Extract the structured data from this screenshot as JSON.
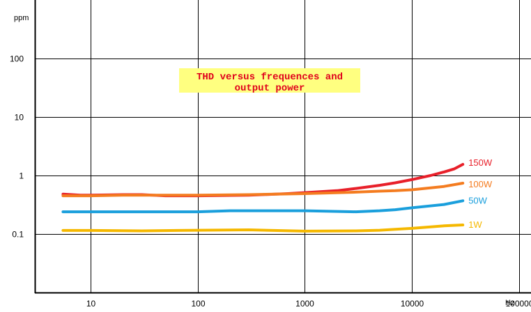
{
  "chart_data": {
    "type": "line",
    "title_lines": [
      "THD versus frequences and",
      "output power"
    ],
    "xlabel": "Hz",
    "ylabel": "ppm",
    "x_scale": "log",
    "y_scale": "log",
    "xlim": [
      3,
      130000
    ],
    "ylim": [
      0.01,
      1000
    ],
    "x_ticks": [
      {
        "value": 10,
        "label": "10"
      },
      {
        "value": 100,
        "label": "100"
      },
      {
        "value": 1000,
        "label": "1000"
      },
      {
        "value": 10000,
        "label": "10000"
      },
      {
        "value": 100000,
        "label": "100000"
      }
    ],
    "y_ticks": [
      {
        "value": 0.1,
        "label": "0.1"
      },
      {
        "value": 1,
        "label": "1"
      },
      {
        "value": 10,
        "label": "10"
      },
      {
        "value": 100,
        "label": "100"
      }
    ],
    "grid": true,
    "colors": {
      "title_text": "#e0001c",
      "title_background": "#ffff80",
      "axis": "#000000"
    },
    "series": [
      {
        "name": "150W",
        "color": "#e8202a",
        "x": [
          5.5,
          8,
          10,
          20,
          30,
          50,
          100,
          300,
          700,
          1000,
          2000,
          3000,
          5000,
          7000,
          10000,
          15000,
          20000,
          25000,
          30000
        ],
        "y": [
          0.48,
          0.46,
          0.46,
          0.47,
          0.47,
          0.45,
          0.45,
          0.46,
          0.49,
          0.51,
          0.55,
          0.6,
          0.68,
          0.75,
          0.85,
          1.0,
          1.15,
          1.3,
          1.55
        ]
      },
      {
        "name": "100W",
        "color": "#f47c20",
        "x": [
          5.5,
          10,
          20,
          50,
          100,
          300,
          1000,
          3000,
          5000,
          7000,
          10000,
          20000,
          30000
        ],
        "y": [
          0.45,
          0.45,
          0.46,
          0.46,
          0.46,
          0.47,
          0.49,
          0.52,
          0.54,
          0.55,
          0.57,
          0.65,
          0.74
        ]
      },
      {
        "name": "50W",
        "color": "#1a9fdc",
        "x": [
          5.5,
          10,
          50,
          100,
          200,
          500,
          1000,
          3000,
          5000,
          7000,
          10000,
          20000,
          30000
        ],
        "y": [
          0.24,
          0.24,
          0.24,
          0.24,
          0.25,
          0.25,
          0.25,
          0.24,
          0.25,
          0.26,
          0.28,
          0.32,
          0.37
        ]
      },
      {
        "name": "1W",
        "color": "#f5b800",
        "x": [
          5.5,
          10,
          30,
          100,
          300,
          1000,
          3000,
          5000,
          7000,
          10000,
          20000,
          30000
        ],
        "y": [
          0.115,
          0.115,
          0.113,
          0.116,
          0.118,
          0.112,
          0.113,
          0.116,
          0.12,
          0.125,
          0.138,
          0.143
        ]
      }
    ]
  }
}
